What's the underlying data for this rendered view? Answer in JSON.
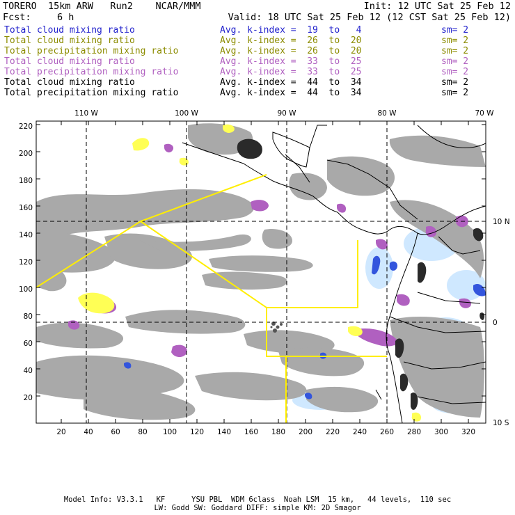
{
  "header": {
    "line1_left": "TORERO  15km ARW   Run2    NCAR/MMM",
    "line1_right": "Init: 12 UTC Sat 25 Feb 12",
    "fcst_label": "Fcst:",
    "fcst_value": "6 h",
    "valid": "Valid: 18 UTC Sat 25 Feb 12 (12 CST Sat 25 Feb 12)"
  },
  "legend": [
    {
      "field": "Total cloud mixing ratio",
      "kindex": "Avg. k-index =  19  to   4",
      "sm": "sm= 2",
      "color": "#2222cc"
    },
    {
      "field": "Total cloud mixing ratio",
      "kindex": "Avg. k-index =  26  to  20",
      "sm": "sm= 2",
      "color": "#8c8c00"
    },
    {
      "field": "Total precipitation mixing ratio",
      "kindex": "Avg. k-index =  26  to  20",
      "sm": "sm= 2",
      "color": "#8c8c00"
    },
    {
      "field": "Total cloud mixing ratio",
      "kindex": "Avg. k-index =  33  to  25",
      "sm": "sm= 2",
      "color": "#b060c0"
    },
    {
      "field": "Total precipitation mixing ratio",
      "kindex": "Avg. k-index =  33  to  25",
      "sm": "sm= 2",
      "color": "#b060c0"
    },
    {
      "field": "Total cloud mixing ratio",
      "kindex": "Avg. k-index =  44  to  34",
      "sm": "sm= 2",
      "color": "#000000"
    },
    {
      "field": "Total precipitation mixing ratio",
      "kindex": "Avg. k-index =  44  to  34",
      "sm": "sm= 2",
      "color": "#000000"
    }
  ],
  "axes": {
    "top_lon_labels": [
      "110 W",
      "100 W",
      "90 W",
      "80 W",
      "70 W"
    ],
    "x_grid_labels": [
      "20",
      "40",
      "60",
      "80",
      "100",
      "120",
      "140",
      "160",
      "180",
      "200",
      "220",
      "240",
      "260",
      "280",
      "300",
      "320"
    ],
    "y_grid_labels": [
      "20",
      "40",
      "60",
      "80",
      "100",
      "120",
      "140",
      "160",
      "180",
      "200",
      "220"
    ],
    "right_lat_labels": [
      "10 N",
      "0",
      "10 S"
    ]
  },
  "footer": {
    "line1": "Model Info: V3.3.1   KF      YSU PBL  WDM 6class  Noah LSM  15 km,   44 levels,  110 sec",
    "line2": "LW: Godd SW: Goddard DIFF: simple KM: 2D Smagor"
  },
  "colors": {
    "gray_cloud": "#a9a9a9",
    "light_blue": "#cfe8ff",
    "blue": "#3355dd",
    "yellow": "#ffff55",
    "purple": "#b060c0",
    "black": "#111111",
    "box_yellow": "#ffee00"
  }
}
